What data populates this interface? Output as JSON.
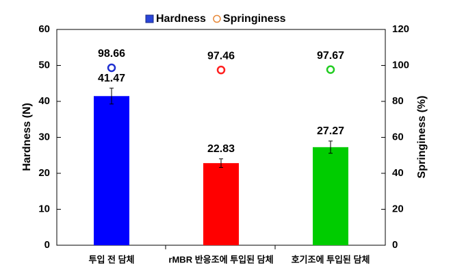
{
  "chart_data": {
    "type": "bar",
    "categories": [
      "투입 전 담체",
      "rMBR 반응조에 투입된 담체",
      "호기조에 투입된 담체"
    ],
    "series": [
      {
        "name": "Hardness",
        "type": "bar",
        "color": "#2a45d8",
        "colors": [
          "#0000ff",
          "#ff0000",
          "#00cc00"
        ],
        "values": [
          41.47,
          22.83,
          27.27
        ],
        "errors": [
          2.2,
          1.2,
          1.7
        ]
      },
      {
        "name": "Springiness",
        "type": "scatter",
        "axis": "y2",
        "color": "#e8893a",
        "colors": [
          "#1f2fd0",
          "#ff2020",
          "#22cc22"
        ],
        "values": [
          98.66,
          97.46,
          97.67
        ]
      }
    ],
    "ylabel": "Hardness (N)",
    "y2label": "Springiness (%)",
    "ylim": [
      0,
      60
    ],
    "yticks": [
      0,
      10,
      20,
      30,
      40,
      50,
      60
    ],
    "y2lim": [
      0,
      120
    ],
    "y2ticks": [
      0,
      20,
      40,
      60,
      80,
      100,
      120
    ],
    "legend": "top"
  }
}
